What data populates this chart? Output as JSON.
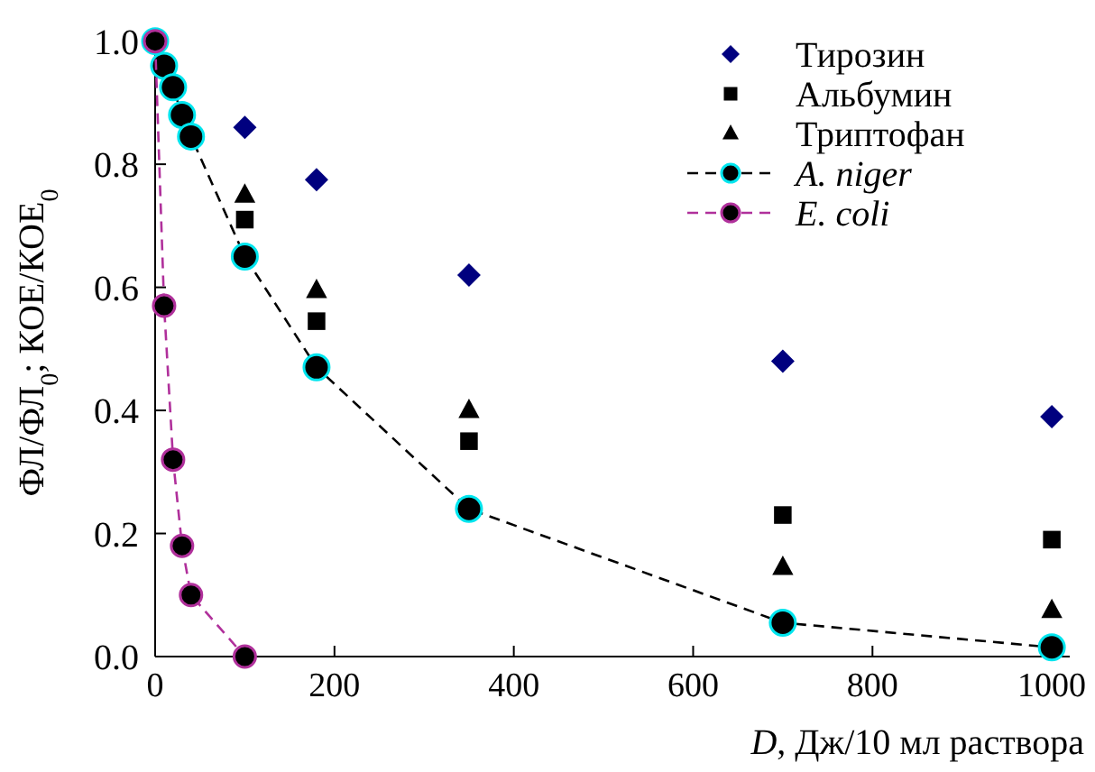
{
  "chart_data": {
    "type": "scatter",
    "xlabel": "D, Дж/10 мл раствора",
    "ylabel": "ФЛ/ФЛ$_{0}$; КОЕ/КОЕ$_{0}$",
    "xlim": [
      0,
      1020
    ],
    "xticks": [
      0,
      200,
      400,
      600,
      800,
      1000
    ],
    "ylim": [
      0,
      1.02
    ],
    "yticks": [
      {
        "value": 0,
        "label": "0.0"
      },
      {
        "value": 0.2,
        "label": "0.2"
      },
      {
        "value": 0.4,
        "label": "0.4"
      },
      {
        "value": 0.6,
        "label": "0.6"
      },
      {
        "value": 0.8,
        "label": "0.8"
      },
      {
        "value": 1,
        "label": "1.0"
      }
    ],
    "grid": false,
    "legend": "top right",
    "series": [
      {
        "name": "Тирозин",
        "marker": "diamond",
        "color": "#00007f",
        "x": [
          100,
          180,
          350,
          700,
          1000
        ],
        "values": [
          0.86,
          0.775,
          0.62,
          0.48,
          0.39
        ]
      },
      {
        "name": "Альбумин",
        "marker": "square",
        "color": "#000000",
        "x": [
          100,
          180,
          350,
          700,
          1000
        ],
        "values": [
          0.71,
          0.545,
          0.35,
          0.23,
          0.19
        ]
      },
      {
        "name": "Триптофан",
        "marker": "triangle",
        "color": "#000000",
        "x": [
          100,
          180,
          350,
          700,
          1000
        ],
        "values": [
          0.75,
          0.595,
          0.4,
          0.145,
          0.075
        ]
      },
      {
        "name": "A. niger",
        "type": "line",
        "marker": "circle",
        "line_style": "dashed",
        "color": "#000000",
        "colors": [
          "#00e5ee",
          "#00e5ee",
          "#00e5ee",
          "#00e5ee",
          "#00e5ee",
          "#00e5ee",
          "#00e5ee",
          "#00e5ee",
          "#00e5ee",
          "#00e5ee"
        ],
        "x": [
          0,
          10,
          20,
          30,
          40,
          100,
          180,
          350,
          700,
          1000
        ],
        "values": [
          1.0,
          0.96,
          0.925,
          0.88,
          0.845,
          0.65,
          0.47,
          0.24,
          0.055,
          0.015
        ]
      },
      {
        "name": "E. coli",
        "type": "line",
        "marker": "circle",
        "line_style": "dashed",
        "color": "#b0309b",
        "colors": [
          "#b0309b",
          "#b0309b",
          "#b0309b",
          "#b0309b",
          "#b0309b",
          "#b0309b"
        ],
        "x": [
          0,
          10,
          20,
          30,
          40,
          100
        ],
        "values": [
          1.0,
          0.57,
          0.32,
          0.18,
          0.1,
          0.0
        ]
      }
    ]
  }
}
